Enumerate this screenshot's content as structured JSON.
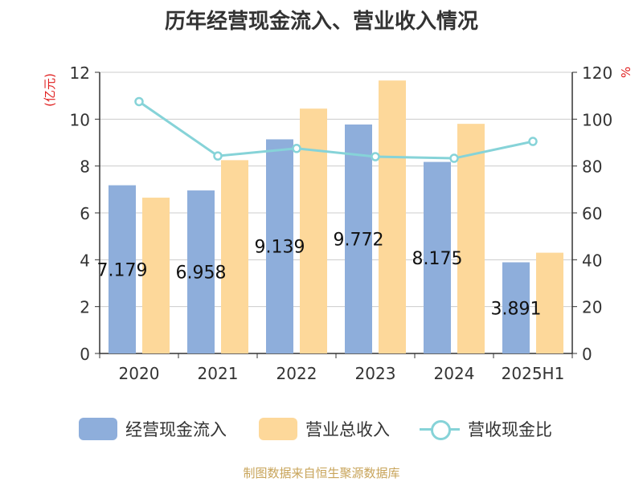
{
  "chart_data": {
    "type": "bar",
    "title": "历年经营现金流入、营业收入情况",
    "ylabel_left": "(亿元)",
    "ylabel_right": "%",
    "categories": [
      "2020",
      "2021",
      "2022",
      "2023",
      "2024",
      "2025H1"
    ],
    "ylim_left": [
      0,
      12
    ],
    "yticks_left": [
      0,
      2,
      4,
      6,
      8,
      10,
      12
    ],
    "ylim_right": [
      0,
      120
    ],
    "yticks_right": [
      0,
      20,
      40,
      60,
      80,
      100,
      120
    ],
    "grid": true,
    "legend_position": "bottom",
    "series": [
      {
        "name": "经营现金流入",
        "type": "bar",
        "axis": "left",
        "color": "#8eaedb",
        "values": [
          7.179,
          6.958,
          9.139,
          9.772,
          8.175,
          3.891
        ],
        "labels": [
          "7.179",
          "6.958",
          "9.139",
          "9.772",
          "8.175",
          "3.891"
        ]
      },
      {
        "name": "营业总收入",
        "type": "bar",
        "axis": "left",
        "color": "#fdd89a",
        "values": [
          6.65,
          8.25,
          10.45,
          11.65,
          9.8,
          4.3
        ]
      },
      {
        "name": "营收现金比",
        "type": "line",
        "axis": "right",
        "color": "#86d3d8",
        "values": [
          107.5,
          84.3,
          87.5,
          84.0,
          83.3,
          90.5
        ]
      }
    ]
  },
  "footer": {
    "source": "制图数据来自恒生聚源数据库"
  }
}
